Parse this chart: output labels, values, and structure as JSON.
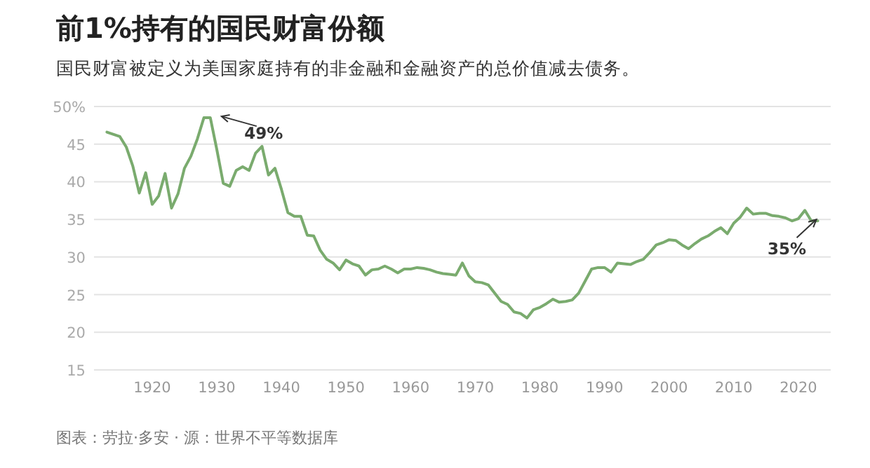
{
  "chart_data": {
    "type": "line",
    "title": "前1%持有的国民财富份额",
    "subtitle": "国民财富被定义为美国家庭持有的非金融和金融资产的总价值减去债务。",
    "x": [
      1913,
      1915,
      1916,
      1917,
      1918,
      1919,
      1920,
      1921,
      1922,
      1923,
      1924,
      1925,
      1926,
      1927,
      1928,
      1929,
      1930,
      1931,
      1932,
      1933,
      1934,
      1935,
      1936,
      1937,
      1938,
      1939,
      1940,
      1941,
      1942,
      1943,
      1944,
      1945,
      1946,
      1947,
      1948,
      1949,
      1950,
      1951,
      1952,
      1953,
      1954,
      1955,
      1956,
      1957,
      1958,
      1959,
      1960,
      1961,
      1962,
      1963,
      1964,
      1965,
      1966,
      1967,
      1968,
      1969,
      1970,
      1971,
      1972,
      1974,
      1975,
      1976,
      1977,
      1978,
      1979,
      1980,
      1981,
      1982,
      1983,
      1984,
      1985,
      1986,
      1987,
      1988,
      1989,
      1990,
      1991,
      1992,
      1993,
      1994,
      1995,
      1996,
      1997,
      1998,
      1999,
      2000,
      2001,
      2002,
      2003,
      2004,
      2005,
      2006,
      2007,
      2008,
      2009,
      2010,
      2011,
      2012,
      2013,
      2014,
      2015,
      2016,
      2017,
      2018,
      2019,
      2020,
      2021,
      2022,
      2023
    ],
    "series": [
      {
        "color": "#7aab6e",
        "values": [
          46.6,
          46.0,
          44.6,
          42.1,
          38.5,
          41.2,
          37.0,
          38.1,
          41.1,
          36.5,
          38.4,
          41.8,
          43.4,
          45.7,
          48.5,
          48.5,
          44.3,
          39.8,
          39.4,
          41.5,
          42.0,
          41.5,
          43.8,
          44.7,
          40.9,
          41.8,
          39.0,
          35.9,
          35.4,
          35.4,
          32.9,
          32.8,
          30.9,
          29.7,
          29.2,
          28.3,
          29.6,
          29.1,
          28.8,
          27.6,
          28.3,
          28.4,
          28.8,
          28.4,
          27.9,
          28.4,
          28.4,
          28.6,
          28.5,
          28.3,
          28.0,
          27.8,
          27.7,
          27.6,
          29.2,
          27.5,
          26.7,
          26.6,
          26.3,
          24.1,
          23.7,
          22.7,
          22.5,
          21.9,
          23.0,
          23.3,
          23.8,
          24.4,
          24.0,
          24.1,
          24.3,
          25.2,
          26.8,
          28.4,
          28.6,
          28.6,
          28.0,
          29.2,
          29.1,
          29.0,
          29.4,
          29.7,
          30.6,
          31.6,
          31.9,
          32.3,
          32.2,
          31.6,
          31.1,
          31.8,
          32.4,
          32.8,
          33.4,
          33.9,
          33.1,
          34.5,
          35.3,
          36.5,
          35.7,
          35.8,
          35.8,
          35.5,
          35.4,
          35.2,
          34.8,
          35.1,
          36.2,
          34.8,
          34.8
        ]
      }
    ],
    "xlim": [
      1911,
      2025
    ],
    "xticks": [
      1920,
      1930,
      1940,
      1950,
      1960,
      1970,
      1980,
      1990,
      2000,
      2010,
      2020
    ],
    "ylim": [
      15,
      50
    ],
    "yticks": [
      15,
      20,
      25,
      30,
      35,
      40,
      45,
      {
        "value": 50,
        "label": "50%"
      }
    ],
    "grid": "y",
    "marker": "none",
    "line_style": "solid",
    "annotations": [
      {
        "text": "49%",
        "x": 1929,
        "y": 48.5
      },
      {
        "text": "35%",
        "x": 2023,
        "y": 34.8
      },
      "图表：劳拉·多安 · 源：世界不平等数据库"
    ]
  }
}
